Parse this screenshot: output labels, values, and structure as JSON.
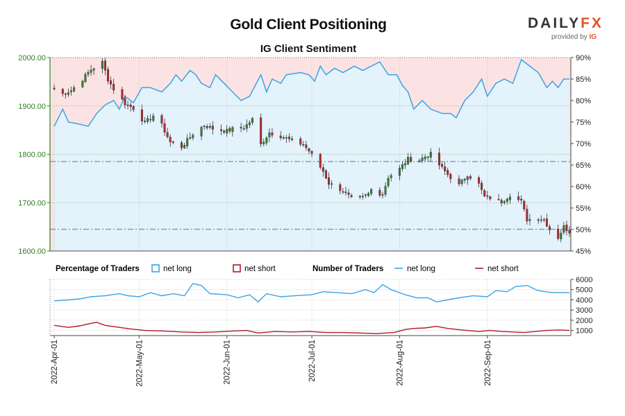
{
  "header": {
    "title": "Gold Client Positioning",
    "subtitle": "IG Client Sentiment",
    "logo_text_main": "DAILY",
    "logo_text_accent": "FX",
    "logo_provided_by": "provided by",
    "logo_provider": "IG"
  },
  "legend": {
    "pct_heading": "Percentage of Traders",
    "pct_long": "net long",
    "pct_short": "net short",
    "num_heading": "Number of Traders",
    "num_long": "net long",
    "num_short": "net short"
  },
  "colors": {
    "long_line": "#3aa3e3",
    "long_fill": "#e3f2fb",
    "short_fill": "#fbe3e3",
    "short_line": "#b0182a",
    "up_candle": "#2e8b2e",
    "down_candle": "#c0282d",
    "price_axis": "#2e7d1e",
    "ref_line": "#7a8fa6"
  },
  "chart_data": [
    {
      "type": "candlestick",
      "name": "price",
      "ylim": [
        1600,
        2000
      ],
      "yticks": [
        "2000.00",
        "1900.00",
        "1800.00",
        "1700.00",
        "1600.00"
      ],
      "ytick_values": [
        2000,
        1900,
        1800,
        1700,
        1600
      ],
      "xlim": [
        "2022-03-31",
        "2022-09-30"
      ],
      "x_ticks": [
        "2022-Apr-01",
        "2022-May-01",
        "2022-Jun-01",
        "2022-Jul-01",
        "2022-Aug-01",
        "2022-Sep-01"
      ],
      "x_tick_dates": [
        "2022-04-01",
        "2022-05-01",
        "2022-06-01",
        "2022-07-01",
        "2022-08-01",
        "2022-09-01"
      ],
      "reference_lines": [
        1785,
        1645
      ],
      "anchors": [
        [
          "2022-04-01",
          1935
        ],
        [
          "2022-04-04",
          1925
        ],
        [
          "2022-04-07",
          1932
        ],
        [
          "2022-04-11",
          1955
        ],
        [
          "2022-04-14",
          1975
        ],
        [
          "2022-04-18",
          1990
        ],
        [
          "2022-04-20",
          1955
        ],
        [
          "2022-04-22",
          1935
        ],
        [
          "2022-04-26",
          1905
        ],
        [
          "2022-04-29",
          1895
        ],
        [
          "2022-05-03",
          1865
        ],
        [
          "2022-05-06",
          1880
        ],
        [
          "2022-05-09",
          1860
        ],
        [
          "2022-05-12",
          1825
        ],
        [
          "2022-05-16",
          1815
        ],
        [
          "2022-05-20",
          1842
        ],
        [
          "2022-05-24",
          1860
        ],
        [
          "2022-05-27",
          1853
        ],
        [
          "2022-06-01",
          1848
        ],
        [
          "2022-06-03",
          1852
        ],
        [
          "2022-06-07",
          1855
        ],
        [
          "2022-06-10",
          1872
        ],
        [
          "2022-06-13",
          1820
        ],
        [
          "2022-06-16",
          1845
        ],
        [
          "2022-06-20",
          1838
        ],
        [
          "2022-06-24",
          1828
        ],
        [
          "2022-06-28",
          1820
        ],
        [
          "2022-06-30",
          1807
        ],
        [
          "2022-07-05",
          1765
        ],
        [
          "2022-07-07",
          1740
        ],
        [
          "2022-07-12",
          1725
        ],
        [
          "2022-07-15",
          1708
        ],
        [
          "2022-07-19",
          1710
        ],
        [
          "2022-07-21",
          1718
        ],
        [
          "2022-07-22",
          1727
        ],
        [
          "2022-07-26",
          1717
        ],
        [
          "2022-07-28",
          1753
        ],
        [
          "2022-08-01",
          1770
        ],
        [
          "2022-08-04",
          1790
        ],
        [
          "2022-08-08",
          1788
        ],
        [
          "2022-08-10",
          1795
        ],
        [
          "2022-08-12",
          1800
        ],
        [
          "2022-08-15",
          1778
        ],
        [
          "2022-08-18",
          1758
        ],
        [
          "2022-08-22",
          1736
        ],
        [
          "2022-08-25",
          1758
        ],
        [
          "2022-08-29",
          1738
        ],
        [
          "2022-08-31",
          1712
        ],
        [
          "2022-09-02",
          1710
        ],
        [
          "2022-09-06",
          1702
        ],
        [
          "2022-09-09",
          1716
        ],
        [
          "2022-09-13",
          1702
        ],
        [
          "2022-09-15",
          1665
        ],
        [
          "2022-09-19",
          1668
        ],
        [
          "2022-09-21",
          1665
        ],
        [
          "2022-09-23",
          1645
        ],
        [
          "2022-09-26",
          1628
        ],
        [
          "2022-09-28",
          1650
        ],
        [
          "2022-09-30",
          1640
        ]
      ]
    },
    {
      "type": "area",
      "name": "net long %",
      "ylim": [
        45,
        90
      ],
      "yticks": [
        "90%",
        "85%",
        "80%",
        "75%",
        "70%",
        "65%",
        "60%",
        "55%",
        "50%",
        "45%"
      ],
      "ytick_values": [
        90,
        85,
        80,
        75,
        70,
        65,
        60,
        55,
        50,
        45
      ],
      "points": [
        [
          "2022-04-01",
          74
        ],
        [
          "2022-04-04",
          78
        ],
        [
          "2022-04-06",
          75
        ],
        [
          "2022-04-10",
          74.5
        ],
        [
          "2022-04-13",
          74
        ],
        [
          "2022-04-16",
          77
        ],
        [
          "2022-04-19",
          79
        ],
        [
          "2022-04-22",
          80
        ],
        [
          "2022-04-24",
          78
        ],
        [
          "2022-04-26",
          81
        ],
        [
          "2022-04-29",
          79.5
        ],
        [
          "2022-05-02",
          83
        ],
        [
          "2022-05-05",
          83
        ],
        [
          "2022-05-09",
          82
        ],
        [
          "2022-05-12",
          84
        ],
        [
          "2022-05-14",
          86
        ],
        [
          "2022-05-16",
          84.5
        ],
        [
          "2022-05-19",
          87
        ],
        [
          "2022-05-21",
          86
        ],
        [
          "2022-05-23",
          84
        ],
        [
          "2022-05-26",
          83
        ],
        [
          "2022-05-28",
          86
        ],
        [
          "2022-05-31",
          84
        ],
        [
          "2022-06-03",
          82
        ],
        [
          "2022-06-06",
          80
        ],
        [
          "2022-06-09",
          81
        ],
        [
          "2022-06-13",
          86
        ],
        [
          "2022-06-15",
          82
        ],
        [
          "2022-06-17",
          85
        ],
        [
          "2022-06-20",
          84
        ],
        [
          "2022-06-22",
          86
        ],
        [
          "2022-06-27",
          86.5
        ],
        [
          "2022-06-30",
          86
        ],
        [
          "2022-07-02",
          84.5
        ],
        [
          "2022-07-04",
          88
        ],
        [
          "2022-07-06",
          86
        ],
        [
          "2022-07-09",
          87.5
        ],
        [
          "2022-07-12",
          86.5
        ],
        [
          "2022-07-16",
          88
        ],
        [
          "2022-07-19",
          87
        ],
        [
          "2022-07-22",
          88
        ],
        [
          "2022-07-25",
          89
        ],
        [
          "2022-07-28",
          86
        ],
        [
          "2022-07-31",
          86
        ],
        [
          "2022-08-02",
          83.5
        ],
        [
          "2022-08-04",
          82
        ],
        [
          "2022-08-06",
          78
        ],
        [
          "2022-08-09",
          80
        ],
        [
          "2022-08-12",
          78
        ],
        [
          "2022-08-16",
          77
        ],
        [
          "2022-08-19",
          77
        ],
        [
          "2022-08-21",
          76
        ],
        [
          "2022-08-24",
          80
        ],
        [
          "2022-08-27",
          82
        ],
        [
          "2022-08-30",
          85
        ],
        [
          "2022-09-01",
          81
        ],
        [
          "2022-09-04",
          84
        ],
        [
          "2022-09-07",
          85
        ],
        [
          "2022-09-10",
          84
        ],
        [
          "2022-09-13",
          89.5
        ],
        [
          "2022-09-16",
          88
        ],
        [
          "2022-09-19",
          86.5
        ],
        [
          "2022-09-22",
          83
        ],
        [
          "2022-09-24",
          84.5
        ],
        [
          "2022-09-26",
          83
        ],
        [
          "2022-09-28",
          85
        ],
        [
          "2022-09-30",
          85
        ]
      ]
    },
    {
      "type": "line",
      "name": "Number of Traders",
      "ylim": [
        500,
        6000
      ],
      "yticks": [
        "6000",
        "5000",
        "4000",
        "3000",
        "2000",
        "1000"
      ],
      "ytick_values": [
        6000,
        5000,
        4000,
        3000,
        2000,
        1000
      ],
      "series": [
        {
          "name": "net long",
          "points": [
            [
              "2022-04-01",
              3900
            ],
            [
              "2022-04-06",
              4000
            ],
            [
              "2022-04-10",
              4100
            ],
            [
              "2022-04-14",
              4300
            ],
            [
              "2022-04-19",
              4400
            ],
            [
              "2022-04-24",
              4600
            ],
            [
              "2022-04-27",
              4400
            ],
            [
              "2022-05-01",
              4300
            ],
            [
              "2022-05-05",
              4700
            ],
            [
              "2022-05-09",
              4400
            ],
            [
              "2022-05-13",
              4600
            ],
            [
              "2022-05-17",
              4400
            ],
            [
              "2022-05-20",
              5600
            ],
            [
              "2022-05-23",
              5400
            ],
            [
              "2022-05-26",
              4600
            ],
            [
              "2022-06-01",
              4500
            ],
            [
              "2022-06-05",
              4200
            ],
            [
              "2022-06-09",
              4500
            ],
            [
              "2022-06-12",
              3800
            ],
            [
              "2022-06-15",
              4600
            ],
            [
              "2022-06-20",
              4300
            ],
            [
              "2022-06-25",
              4400
            ],
            [
              "2022-07-01",
              4500
            ],
            [
              "2022-07-05",
              4800
            ],
            [
              "2022-07-10",
              4700
            ],
            [
              "2022-07-15",
              4600
            ],
            [
              "2022-07-20",
              5000
            ],
            [
              "2022-07-23",
              4700
            ],
            [
              "2022-07-26",
              5500
            ],
            [
              "2022-07-29",
              5000
            ],
            [
              "2022-08-03",
              4500
            ],
            [
              "2022-08-07",
              4200
            ],
            [
              "2022-08-11",
              4200
            ],
            [
              "2022-08-14",
              3800
            ],
            [
              "2022-08-18",
              4000
            ],
            [
              "2022-08-22",
              4200
            ],
            [
              "2022-08-27",
              4400
            ],
            [
              "2022-09-01",
              4300
            ],
            [
              "2022-09-04",
              4900
            ],
            [
              "2022-09-08",
              4800
            ],
            [
              "2022-09-11",
              5300
            ],
            [
              "2022-09-15",
              5400
            ],
            [
              "2022-09-19",
              4900
            ],
            [
              "2022-09-24",
              4700
            ],
            [
              "2022-09-30",
              4700
            ]
          ]
        },
        {
          "name": "net short",
          "points": [
            [
              "2022-04-01",
              1500
            ],
            [
              "2022-04-06",
              1300
            ],
            [
              "2022-04-10",
              1450
            ],
            [
              "2022-04-14",
              1700
            ],
            [
              "2022-04-16",
              1800
            ],
            [
              "2022-04-19",
              1500
            ],
            [
              "2022-04-24",
              1300
            ],
            [
              "2022-04-28",
              1150
            ],
            [
              "2022-05-03",
              1000
            ],
            [
              "2022-05-10",
              950
            ],
            [
              "2022-05-16",
              850
            ],
            [
              "2022-05-22",
              800
            ],
            [
              "2022-05-28",
              850
            ],
            [
              "2022-06-03",
              950
            ],
            [
              "2022-06-08",
              1000
            ],
            [
              "2022-06-12",
              750
            ],
            [
              "2022-06-18",
              900
            ],
            [
              "2022-06-24",
              850
            ],
            [
              "2022-06-30",
              900
            ],
            [
              "2022-07-06",
              800
            ],
            [
              "2022-07-12",
              800
            ],
            [
              "2022-07-18",
              750
            ],
            [
              "2022-07-24",
              700
            ],
            [
              "2022-07-30",
              800
            ],
            [
              "2022-08-03",
              1100
            ],
            [
              "2022-08-06",
              1200
            ],
            [
              "2022-08-10",
              1250
            ],
            [
              "2022-08-14",
              1400
            ],
            [
              "2022-08-18",
              1200
            ],
            [
              "2022-08-23",
              1050
            ],
            [
              "2022-08-29",
              900
            ],
            [
              "2022-09-02",
              1000
            ],
            [
              "2022-09-06",
              900
            ],
            [
              "2022-09-10",
              850
            ],
            [
              "2022-09-14",
              800
            ],
            [
              "2022-09-18",
              900
            ],
            [
              "2022-09-22",
              1000
            ],
            [
              "2022-09-26",
              1050
            ],
            [
              "2022-09-30",
              1000
            ]
          ]
        }
      ]
    }
  ]
}
